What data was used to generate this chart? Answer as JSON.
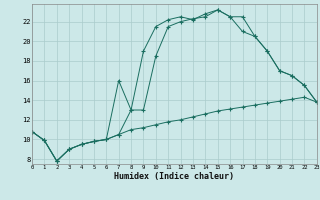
{
  "xlabel": "Humidex (Indice chaleur)",
  "bg_color": "#cce8e8",
  "grid_color": "#aacccc",
  "line_color": "#1a6e60",
  "ylim": [
    7.5,
    23.8
  ],
  "xlim": [
    0,
    23
  ],
  "yticks": [
    8,
    10,
    12,
    14,
    16,
    18,
    20,
    22
  ],
  "xticks": [
    0,
    1,
    2,
    3,
    4,
    5,
    6,
    7,
    8,
    9,
    10,
    11,
    12,
    13,
    14,
    15,
    16,
    17,
    18,
    19,
    20,
    21,
    22,
    23
  ],
  "line1_x": [
    0,
    1,
    2,
    3,
    4,
    5,
    6,
    7,
    8,
    9,
    10,
    11,
    12,
    13,
    14,
    15,
    16,
    17,
    18,
    19,
    20,
    21,
    22,
    23
  ],
  "line1_y": [
    10.8,
    9.9,
    7.8,
    9.0,
    9.5,
    9.8,
    10.0,
    10.5,
    11.0,
    11.2,
    11.5,
    11.8,
    12.0,
    12.3,
    12.6,
    12.9,
    13.1,
    13.3,
    13.5,
    13.7,
    13.9,
    14.1,
    14.3,
    13.8
  ],
  "line2_x": [
    0,
    1,
    2,
    3,
    4,
    5,
    6,
    7,
    8,
    9,
    10,
    11,
    12,
    13,
    14,
    15,
    16,
    17,
    18,
    19,
    20,
    21,
    22,
    23
  ],
  "line2_y": [
    10.8,
    9.9,
    7.8,
    9.0,
    9.5,
    9.8,
    10.0,
    10.5,
    13.0,
    19.0,
    21.5,
    22.2,
    22.5,
    22.2,
    22.8,
    23.2,
    22.5,
    22.5,
    20.5,
    19.0,
    17.0,
    16.5,
    15.5,
    13.8
  ],
  "line3_x": [
    0,
    1,
    2,
    3,
    4,
    5,
    6,
    7,
    8,
    9,
    10,
    11,
    12,
    13,
    14,
    15,
    16,
    17,
    18,
    19,
    20,
    21,
    22,
    23
  ],
  "line3_y": [
    10.8,
    9.9,
    7.8,
    9.0,
    9.5,
    9.8,
    10.0,
    16.0,
    13.0,
    13.0,
    18.5,
    21.5,
    22.0,
    22.3,
    22.5,
    23.2,
    22.5,
    21.0,
    20.5,
    19.0,
    17.0,
    16.5,
    15.5,
    13.8
  ]
}
